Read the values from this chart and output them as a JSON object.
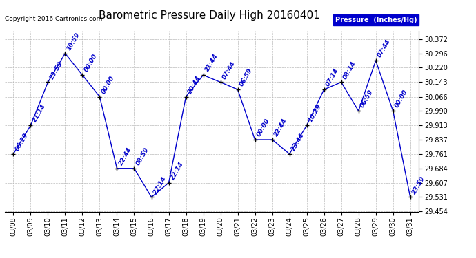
{
  "title": "Barometric Pressure Daily High 20160401",
  "copyright": "Copyright 2016 Cartronics.com",
  "legend_label": "Pressure  (Inches/Hg)",
  "dates": [
    "03/08",
    "03/09",
    "03/10",
    "03/11",
    "03/12",
    "03/13",
    "03/14",
    "03/15",
    "03/16",
    "03/17",
    "03/18",
    "03/19",
    "03/20",
    "03/21",
    "03/22",
    "03/23",
    "03/24",
    "03/25",
    "03/26",
    "03/27",
    "03/28",
    "03/29",
    "03/30",
    "03/31"
  ],
  "values": [
    29.761,
    29.913,
    30.143,
    30.296,
    30.181,
    30.066,
    29.684,
    29.684,
    29.531,
    29.607,
    30.066,
    30.181,
    30.143,
    30.104,
    29.837,
    29.837,
    29.761,
    29.913,
    30.104,
    30.143,
    29.99,
    30.258,
    29.99,
    29.531
  ],
  "time_labels": [
    "06:29",
    "21:14",
    "23:59",
    "10:59",
    "00:00",
    "00:00",
    "22:44",
    "08:59",
    "22:14",
    "22:14",
    "20:44",
    "21:44",
    "07:44",
    "06:59",
    "00:00",
    "22:44",
    "23:44",
    "10:29",
    "07:14",
    "08:14",
    "06:59",
    "07:44",
    "00:00",
    "23:59"
  ],
  "ylim_min": 29.454,
  "ylim_max": 30.416,
  "yticks": [
    29.454,
    29.531,
    29.607,
    29.684,
    29.761,
    29.837,
    29.913,
    29.99,
    30.066,
    30.143,
    30.22,
    30.296,
    30.372
  ],
  "line_color": "#0000CC",
  "marker_color": "#000000",
  "legend_bg": "#0000CC",
  "legend_text_color": "#FFFFFF",
  "background_color": "#FFFFFF",
  "grid_color": "#AAAAAA",
  "title_fontsize": 11,
  "label_fontsize": 6.5,
  "tick_fontsize": 7,
  "copyright_fontsize": 6.5
}
